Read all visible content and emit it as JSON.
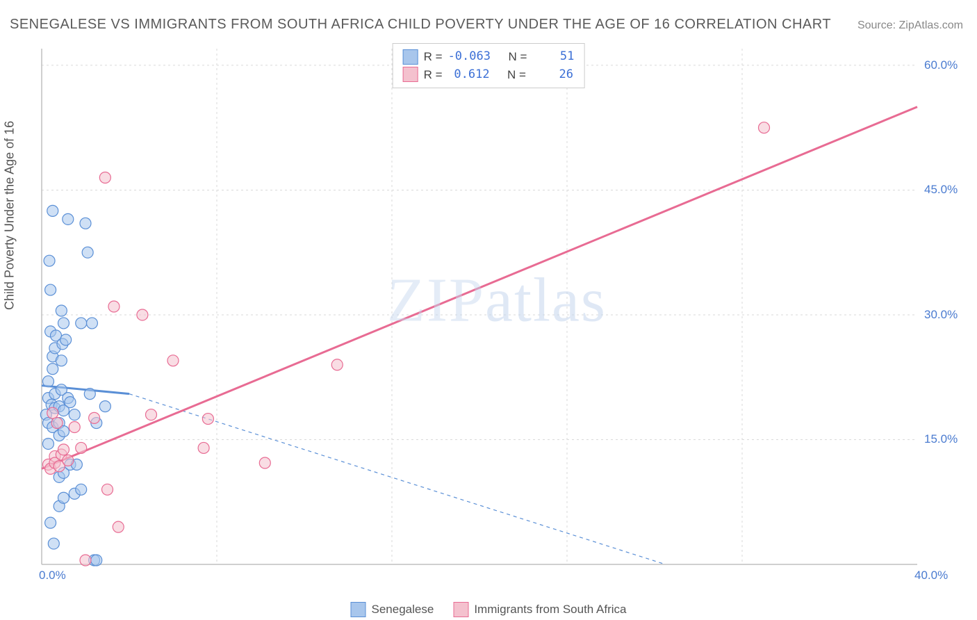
{
  "title": "SENEGALESE VS IMMIGRANTS FROM SOUTH AFRICA CHILD POVERTY UNDER THE AGE OF 16 CORRELATION CHART",
  "source": "Source: ZipAtlas.com",
  "watermark": "ZIPatlas",
  "y_axis_label": "Child Poverty Under the Age of 16",
  "chart": {
    "type": "scatter",
    "xlim": [
      0,
      40
    ],
    "ylim": [
      0,
      62
    ],
    "x_ticks": [
      0,
      40
    ],
    "x_tick_labels": [
      "0.0%",
      "40.0%"
    ],
    "y_ticks": [
      15,
      30,
      45,
      60
    ],
    "y_tick_labels": [
      "15.0%",
      "30.0%",
      "45.0%",
      "60.0%"
    ],
    "grid_color": "#d9d9d9",
    "axis_color": "#bfbfbf",
    "background_color": "#ffffff",
    "marker_radius": 8,
    "marker_opacity": 0.55,
    "line_width_solid": 3,
    "line_width_dashed": 1.2,
    "series": [
      {
        "name": "Senegalese",
        "color_fill": "#a8c6ec",
        "color_stroke": "#5a8fd6",
        "r": "-0.063",
        "n": "51",
        "trend_solid": {
          "x1": 0,
          "y1": 21.5,
          "x2": 4,
          "y2": 20.5
        },
        "trend_dashed": {
          "x1": 4,
          "y1": 20.5,
          "x2": 28.5,
          "y2": 0
        },
        "points": [
          [
            0.2,
            18
          ],
          [
            0.3,
            20
          ],
          [
            0.3,
            22
          ],
          [
            0.3,
            17
          ],
          [
            0.3,
            14.5
          ],
          [
            0.35,
            36.5
          ],
          [
            0.4,
            28
          ],
          [
            0.4,
            33
          ],
          [
            0.45,
            19.2
          ],
          [
            0.5,
            42.5
          ],
          [
            0.5,
            25
          ],
          [
            0.5,
            23.5
          ],
          [
            0.5,
            16.5
          ],
          [
            0.6,
            26
          ],
          [
            0.6,
            20.5
          ],
          [
            0.6,
            18.8
          ],
          [
            0.65,
            27.5
          ],
          [
            0.8,
            19
          ],
          [
            0.8,
            17
          ],
          [
            0.8,
            15.5
          ],
          [
            0.8,
            10.5
          ],
          [
            0.8,
            7
          ],
          [
            0.9,
            24.5
          ],
          [
            0.9,
            21
          ],
          [
            0.95,
            26.5
          ],
          [
            1.0,
            29
          ],
          [
            1.0,
            18.5
          ],
          [
            1.0,
            16
          ],
          [
            1.0,
            11
          ],
          [
            1.0,
            8
          ],
          [
            1.2,
            41.5
          ],
          [
            1.2,
            20
          ],
          [
            1.3,
            19.5
          ],
          [
            1.3,
            12
          ],
          [
            1.5,
            18
          ],
          [
            1.5,
            8.5
          ],
          [
            1.8,
            29
          ],
          [
            1.8,
            9
          ],
          [
            2.0,
            41.0
          ],
          [
            2.1,
            37.5
          ],
          [
            2.2,
            20.5
          ],
          [
            2.3,
            29
          ],
          [
            2.4,
            0.5
          ],
          [
            2.5,
            17
          ],
          [
            2.5,
            0.5
          ],
          [
            2.9,
            19
          ],
          [
            0.4,
            5
          ],
          [
            0.55,
            2.5
          ],
          [
            0.9,
            30.5
          ],
          [
            1.1,
            27
          ],
          [
            1.6,
            12
          ]
        ]
      },
      {
        "name": "Immigrants from South Africa",
        "color_fill": "#f4c1ce",
        "color_stroke": "#e86b93",
        "r": "0.612",
        "n": "26",
        "trend_solid": {
          "x1": 0,
          "y1": 11.5,
          "x2": 40,
          "y2": 55
        },
        "trend_dashed": null,
        "points": [
          [
            0.3,
            12
          ],
          [
            0.4,
            11.5
          ],
          [
            0.5,
            18.2
          ],
          [
            0.6,
            13
          ],
          [
            0.6,
            12.2
          ],
          [
            0.7,
            17
          ],
          [
            0.8,
            11.8
          ],
          [
            0.9,
            13.2
          ],
          [
            1.0,
            13.8
          ],
          [
            1.2,
            12.5
          ],
          [
            1.5,
            16.5
          ],
          [
            1.8,
            14
          ],
          [
            2.0,
            0.5
          ],
          [
            2.4,
            17.6
          ],
          [
            2.9,
            46.5
          ],
          [
            3.0,
            9
          ],
          [
            3.3,
            31
          ],
          [
            3.5,
            4.5
          ],
          [
            4.6,
            30
          ],
          [
            5.0,
            18
          ],
          [
            6.0,
            24.5
          ],
          [
            7.4,
            14
          ],
          [
            7.6,
            17.5
          ],
          [
            10.2,
            12.2
          ],
          [
            13.5,
            24
          ],
          [
            33.0,
            52.5
          ]
        ]
      }
    ]
  },
  "stats_labels": {
    "r": "R =",
    "n": "N ="
  },
  "legend_labels": {
    "s1": "Senegalese",
    "s2": "Immigrants from South Africa"
  }
}
